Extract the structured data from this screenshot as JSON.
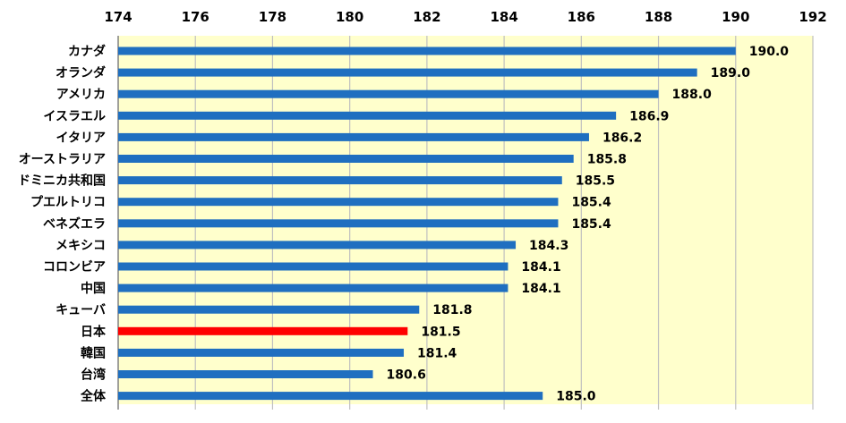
{
  "chart_data": {
    "type": "bar",
    "orientation": "horizontal",
    "categories": [
      "カナダ",
      "オランダ",
      "アメリカ",
      "イスラエル",
      "イタリア",
      "オーストラリア",
      "ドミニカ共和国",
      "プエルトリコ",
      "ベネズエラ",
      "メキシコ",
      "コロンビア",
      "中国",
      "キューバ",
      "日本",
      "韓国",
      "台湾",
      "全体"
    ],
    "values": [
      190.0,
      189.0,
      188.0,
      186.9,
      186.2,
      185.8,
      185.5,
      185.4,
      185.4,
      184.3,
      184.1,
      184.1,
      181.8,
      181.5,
      181.4,
      180.6,
      185.0
    ],
    "value_labels": [
      "190.0",
      "189.0",
      "188.0",
      "186.9",
      "186.2",
      "185.8",
      "185.5",
      "185.4",
      "185.4",
      "184.3",
      "184.1",
      "184.1",
      "181.8",
      "181.5",
      "181.4",
      "180.6",
      "185.0"
    ],
    "highlight_index": 13,
    "xlim": [
      174,
      192
    ],
    "x_ticks": [
      174,
      176,
      178,
      180,
      182,
      184,
      186,
      188,
      190,
      192
    ],
    "x_tick_labels": [
      "174",
      "176",
      "178",
      "180",
      "182",
      "184",
      "186",
      "188",
      "190",
      "192"
    ],
    "axis_position": "top",
    "grid": true,
    "legend": "none",
    "colors": {
      "bar": "#1f6fc0",
      "highlight": "#ff0000",
      "plot_background": "#ffffcc",
      "gridline": "#c0c0c0",
      "axis": "#808080"
    }
  }
}
